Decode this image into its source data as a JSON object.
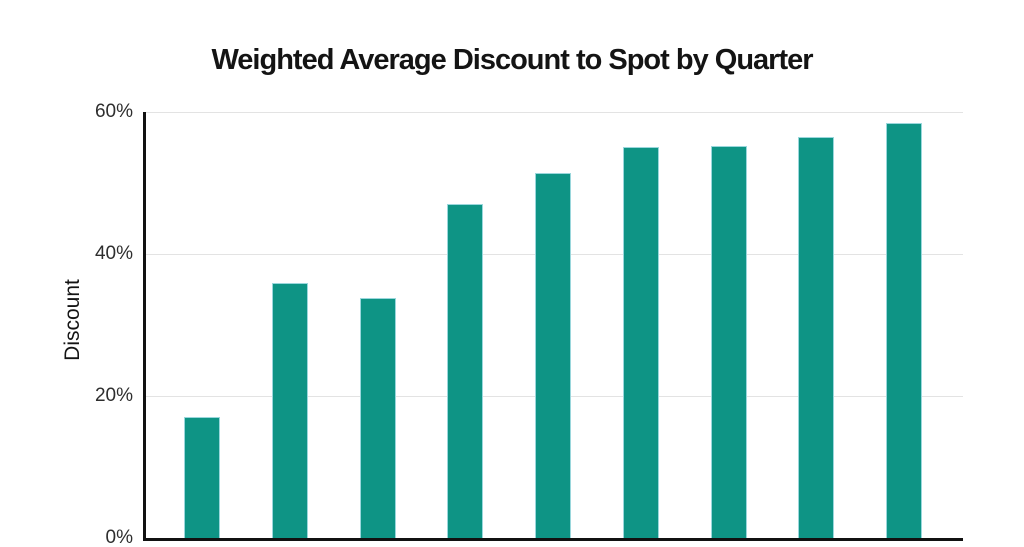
{
  "page": {
    "background": "#ffffff"
  },
  "chart_data": {
    "type": "bar",
    "title": "Weighted Average Discount to Spot by Quarter",
    "ylabel": "Discount",
    "xlabel": "",
    "values": [
      17.1,
      35.9,
      33.8,
      47.1,
      51.4,
      55.1,
      55.2,
      56.5,
      58.4
    ],
    "ylim": [
      0,
      60
    ],
    "yticks_top_to_bottom": [
      "60%",
      "40%",
      "20%",
      "0%"
    ],
    "grid": true,
    "legend": false,
    "x_tick_labels_visible": false,
    "colors": {
      "bar_fill": "#0E9485",
      "bar_border": "#9AD7DC",
      "axis": "#111111",
      "grid": "#E3E3E3",
      "title_text": "#141414",
      "tick_text": "#2E2E2E",
      "background": "#ffffff"
    }
  }
}
